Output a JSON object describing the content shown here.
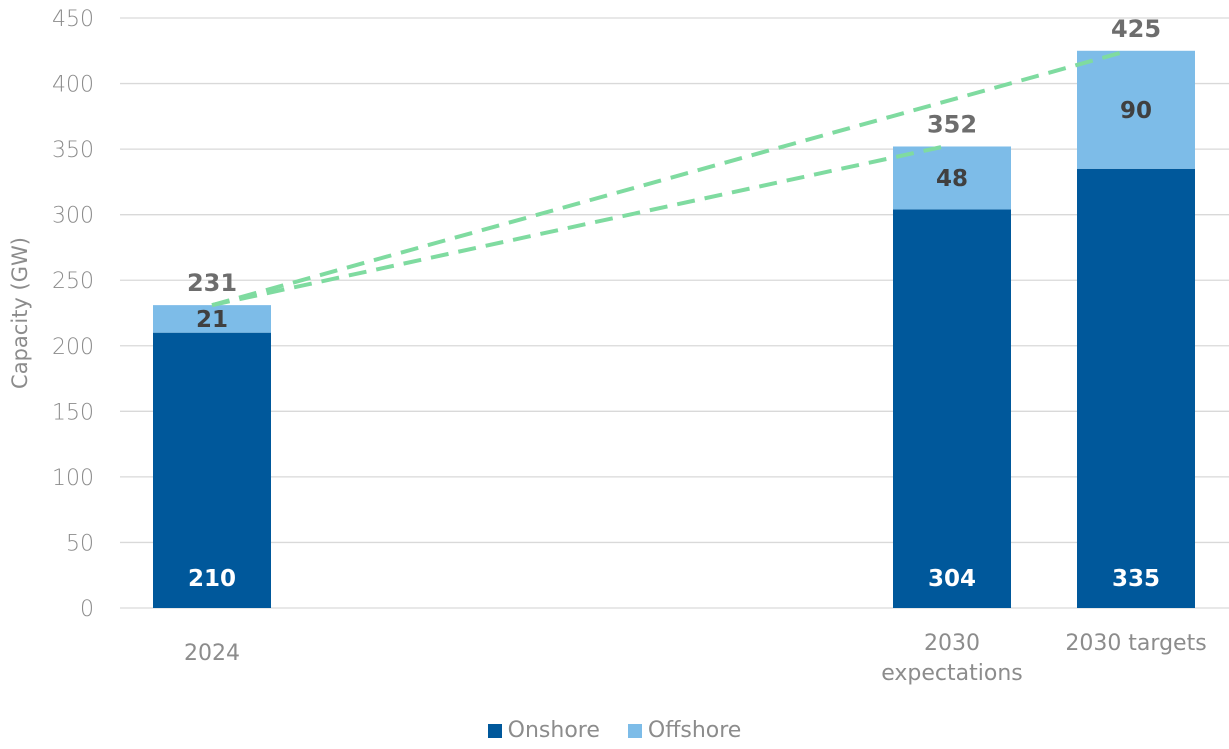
{
  "chart_data": {
    "type": "bar",
    "stacked": true,
    "categories": [
      [
        "2024"
      ],
      [
        "2030",
        "expectations"
      ],
      [
        "2030 targets"
      ]
    ],
    "series": [
      {
        "name": "Onshore",
        "values": [
          210,
          304,
          335
        ],
        "color": "#00589b"
      },
      {
        "name": "Offshore",
        "values": [
          21,
          48,
          90
        ],
        "color": "#7dbce8"
      }
    ],
    "totals": [
      231,
      352,
      425
    ],
    "ylabel": "Capacity (GW)",
    "xlabel": "",
    "ylim": [
      0,
      450
    ],
    "yticks": [
      0,
      50,
      100,
      150,
      200,
      250,
      300,
      350,
      400,
      450
    ],
    "grid": true,
    "legend_position": "bottom",
    "trend_line_color": "#7fdba0"
  }
}
